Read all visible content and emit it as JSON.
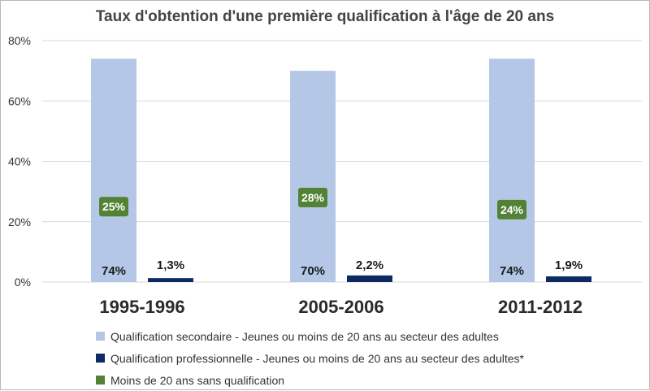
{
  "chart_data": {
    "type": "bar",
    "title": "Taux d'obtention d'une première qualification à l'âge de 20 ans",
    "categories": [
      "1995-1996",
      "2005-2006",
      "2011-2012"
    ],
    "ylim": [
      0,
      80
    ],
    "yticks": [
      "0%",
      "20%",
      "40%",
      "60%",
      "80%"
    ],
    "grid": true,
    "legend_position": "bottom",
    "series": [
      {
        "name": "Qualification secondaire - Jeunes ou moins de 20 ans au secteur des adultes",
        "values": [
          74,
          70,
          74
        ],
        "labels": [
          "74%",
          "70%",
          "74%"
        ],
        "color": "#b4c7e7"
      },
      {
        "name": "Qualification professionnelle - Jeunes ou moins de 20 ans au secteur des adultes*",
        "values": [
          1.3,
          2.2,
          1.9
        ],
        "labels": [
          "1,3%",
          "2,2%",
          "1,9%"
        ],
        "color": "#0d2a63"
      },
      {
        "name": "Moins de 20 ans sans qualification",
        "values": [
          25,
          28,
          24
        ],
        "labels": [
          "25%",
          "28%",
          "24%"
        ],
        "color": "#548235"
      }
    ]
  }
}
